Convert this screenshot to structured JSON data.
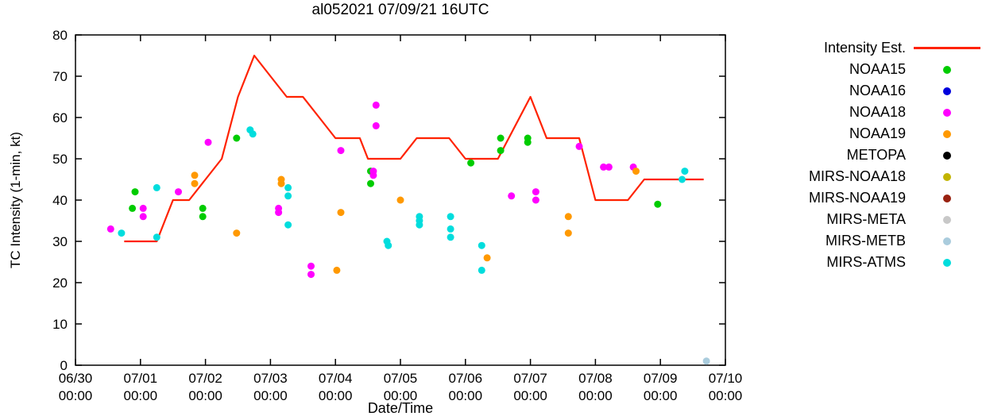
{
  "page": {
    "background": "#ffffff"
  },
  "chart_data": {
    "type": "scatter",
    "title": "al052021 07/09/21 16UTC",
    "xlabel": "Date/Time",
    "ylabel": "TC Intensity (1-min, kt)",
    "xlim": [
      "06/30 00:00",
      "07/10 00:00"
    ],
    "ylim": [
      0,
      80
    ],
    "y_ticks": [
      0,
      10,
      20,
      30,
      40,
      50,
      60,
      70,
      80
    ],
    "x_tick_labels": [
      [
        "06/30",
        "00:00"
      ],
      [
        "07/01",
        "00:00"
      ],
      [
        "07/02",
        "00:00"
      ],
      [
        "07/03",
        "00:00"
      ],
      [
        "07/04",
        "00:00"
      ],
      [
        "07/05",
        "00:00"
      ],
      [
        "07/06",
        "00:00"
      ],
      [
        "07/07",
        "00:00"
      ],
      [
        "07/08",
        "00:00"
      ],
      [
        "07/09",
        "00:00"
      ],
      [
        "07/10",
        "00:00"
      ]
    ],
    "grid": false,
    "legend_position": "outside-right",
    "intensity_line": {
      "name": "Intensity Est.",
      "color": "#ff2200",
      "points": [
        [
          "06/30 18:00",
          30
        ],
        [
          "07/01 06:00",
          30
        ],
        [
          "07/01 12:00",
          40
        ],
        [
          "07/01 18:00",
          40
        ],
        [
          "07/02 00:00",
          45
        ],
        [
          "07/02 06:00",
          50
        ],
        [
          "07/02 12:00",
          65
        ],
        [
          "07/02 18:00",
          75
        ],
        [
          "07/03 00:00",
          70
        ],
        [
          "07/03 06:00",
          65
        ],
        [
          "07/03 12:00",
          65
        ],
        [
          "07/03 18:00",
          60
        ],
        [
          "07/04 00:00",
          55
        ],
        [
          "07/04 09:00",
          55
        ],
        [
          "07/04 12:00",
          50
        ],
        [
          "07/05 00:00",
          50
        ],
        [
          "07/05 06:00",
          55
        ],
        [
          "07/05 18:00",
          55
        ],
        [
          "07/06 00:00",
          50
        ],
        [
          "07/06 12:00",
          50
        ],
        [
          "07/07 00:00",
          65
        ],
        [
          "07/07 06:00",
          55
        ],
        [
          "07/07 18:00",
          55
        ],
        [
          "07/08 00:00",
          40
        ],
        [
          "07/08 12:00",
          40
        ],
        [
          "07/08 18:00",
          45
        ],
        [
          "07/09 16:00",
          45
        ]
      ]
    },
    "series": [
      {
        "name": "NOAA15",
        "color": "#00cc00",
        "points": [
          [
            "06/30 21:00",
            38
          ],
          [
            "06/30 22:00",
            42
          ],
          [
            "07/01 23:00",
            38
          ],
          [
            "07/01 23:00",
            36
          ],
          [
            "07/02 11:30",
            55
          ],
          [
            "07/04 13:00",
            47
          ],
          [
            "07/04 13:00",
            44
          ],
          [
            "07/06 02:00",
            49
          ],
          [
            "07/06 13:00",
            55
          ],
          [
            "07/06 13:00",
            52
          ],
          [
            "07/06 23:00",
            55
          ],
          [
            "07/06 23:00",
            54
          ],
          [
            "07/08 23:00",
            39
          ]
        ]
      },
      {
        "name": "NOAA16",
        "color": "#0000dd",
        "points": []
      },
      {
        "name": "NOAA18",
        "color": "#ff00ff",
        "points": [
          [
            "06/30 13:00",
            33
          ],
          [
            "07/01 01:00",
            38
          ],
          [
            "07/01 01:00",
            36
          ],
          [
            "07/01 14:00",
            42
          ],
          [
            "07/02 01:00",
            54
          ],
          [
            "07/03 03:00",
            38
          ],
          [
            "07/03 03:00",
            37
          ],
          [
            "07/03 15:00",
            24
          ],
          [
            "07/03 15:00",
            22
          ],
          [
            "07/04 02:00",
            52
          ],
          [
            "07/04 14:00",
            47
          ],
          [
            "07/04 14:00",
            46
          ],
          [
            "07/04 15:00",
            63
          ],
          [
            "07/04 15:00",
            58
          ],
          [
            "07/06 17:00",
            41
          ],
          [
            "07/07 02:00",
            42
          ],
          [
            "07/07 02:00",
            40
          ],
          [
            "07/07 18:00",
            53
          ],
          [
            "07/08 03:00",
            48
          ],
          [
            "07/08 05:00",
            48
          ],
          [
            "07/08 14:00",
            48
          ]
        ]
      },
      {
        "name": "NOAA19",
        "color": "#ff9900",
        "points": [
          [
            "07/01 20:00",
            46
          ],
          [
            "07/01 20:00",
            44
          ],
          [
            "07/02 11:30",
            32
          ],
          [
            "07/03 04:00",
            45
          ],
          [
            "07/03 04:00",
            44
          ],
          [
            "07/04 00:30",
            23
          ],
          [
            "07/04 02:00",
            37
          ],
          [
            "07/05 00:00",
            40
          ],
          [
            "07/06 08:00",
            26
          ],
          [
            "07/07 14:00",
            36
          ],
          [
            "07/07 14:00",
            32
          ],
          [
            "07/08 15:00",
            47
          ]
        ]
      },
      {
        "name": "METOPA",
        "color": "#000000",
        "points": []
      },
      {
        "name": "MIRS-NOAA18",
        "color": "#c2b400",
        "points": []
      },
      {
        "name": "MIRS-NOAA19",
        "color": "#992211",
        "points": []
      },
      {
        "name": "MIRS-META",
        "color": "#c8c8c8",
        "points": []
      },
      {
        "name": "MIRS-METB",
        "color": "#aaccdd",
        "points": [
          [
            "07/09 17:00",
            1
          ]
        ]
      },
      {
        "name": "MIRS-ATMS",
        "color": "#00dddd",
        "points": [
          [
            "06/30 17:00",
            32
          ],
          [
            "07/01 06:00",
            43
          ],
          [
            "07/01 06:00",
            31
          ],
          [
            "07/02 16:30",
            57
          ],
          [
            "07/02 17:30",
            56
          ],
          [
            "07/03 06:30",
            43
          ],
          [
            "07/03 06:30",
            41
          ],
          [
            "07/03 06:30",
            34
          ],
          [
            "07/04 19:00",
            30
          ],
          [
            "07/04 19:30",
            29
          ],
          [
            "07/05 07:00",
            36
          ],
          [
            "07/05 07:00",
            35
          ],
          [
            "07/05 07:00",
            34
          ],
          [
            "07/05 18:30",
            36
          ],
          [
            "07/05 18:30",
            33
          ],
          [
            "07/05 18:30",
            31
          ],
          [
            "07/06 06:00",
            29
          ],
          [
            "07/06 06:00",
            23
          ],
          [
            "07/09 08:00",
            45
          ],
          [
            "07/09 09:00",
            47
          ]
        ]
      }
    ]
  }
}
